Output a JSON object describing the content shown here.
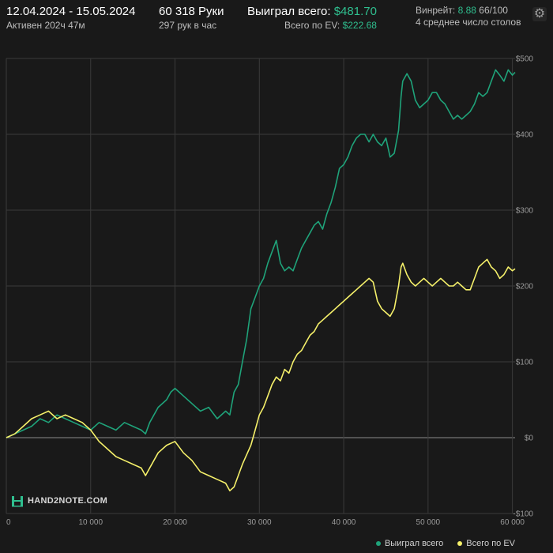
{
  "header": {
    "date_range": "12.04.2024 - 15.05.2024",
    "active_time": "Активен 202ч 47м",
    "hands": "60 318 Руки",
    "hands_per_hour": "297 рук в час",
    "won_total_label": "Выиграл всего:",
    "won_total_value": "$481.70",
    "ev_total_label": "Всего по EV:",
    "ev_total_value": "$222.68",
    "winrate_label": "Винрейт:",
    "winrate_value": "8.88",
    "winrate_suffix": "66/100",
    "tables": "4 среднее число столов"
  },
  "settings_icon": "gear-icon",
  "watermark": {
    "text": "HAND2NOTE.COM",
    "logo": "hand2note-logo"
  },
  "colors": {
    "background": "#191919",
    "grid": "#3a3a3a",
    "zero_line": "#8a8a8a",
    "won": "#1fa37a",
    "ev": "#f5f06a",
    "accent_green": "#2fbf8f"
  },
  "chart_data": {
    "type": "line",
    "title": "",
    "xlabel": "",
    "ylabel": "",
    "xlim": [
      0,
      60318
    ],
    "ylim": [
      -100,
      500
    ],
    "x_ticks": [
      0,
      10000,
      20000,
      30000,
      40000,
      50000,
      60000
    ],
    "x_tick_labels": [
      "0",
      "10 000",
      "20 000",
      "30 000",
      "40 000",
      "50 000",
      "60 000"
    ],
    "y_ticks": [
      -100,
      0,
      100,
      200,
      300,
      400,
      500
    ],
    "y_tick_labels": [
      "-$100",
      "$0",
      "$100",
      "$200",
      "$300",
      "$400",
      "$500"
    ],
    "grid": true,
    "legend_position": "bottom-right",
    "series": [
      {
        "name": "Выиграл всего",
        "color": "#1fa37a",
        "points": [
          [
            0,
            0
          ],
          [
            1000,
            5
          ],
          [
            2000,
            10
          ],
          [
            3000,
            15
          ],
          [
            4000,
            25
          ],
          [
            5000,
            20
          ],
          [
            6000,
            30
          ],
          [
            7000,
            25
          ],
          [
            8000,
            20
          ],
          [
            9000,
            15
          ],
          [
            10000,
            10
          ],
          [
            11000,
            20
          ],
          [
            12000,
            15
          ],
          [
            13000,
            10
          ],
          [
            14000,
            20
          ],
          [
            15000,
            15
          ],
          [
            16000,
            10
          ],
          [
            16500,
            5
          ],
          [
            17000,
            20
          ],
          [
            18000,
            40
          ],
          [
            19000,
            50
          ],
          [
            19500,
            60
          ],
          [
            20000,
            65
          ],
          [
            21000,
            55
          ],
          [
            22000,
            45
          ],
          [
            23000,
            35
          ],
          [
            24000,
            40
          ],
          [
            25000,
            25
          ],
          [
            26000,
            35
          ],
          [
            26500,
            30
          ],
          [
            27000,
            60
          ],
          [
            27500,
            70
          ],
          [
            28000,
            100
          ],
          [
            28500,
            130
          ],
          [
            29000,
            170
          ],
          [
            29500,
            185
          ],
          [
            30000,
            200
          ],
          [
            30500,
            210
          ],
          [
            31000,
            230
          ],
          [
            31500,
            245
          ],
          [
            32000,
            260
          ],
          [
            32500,
            230
          ],
          [
            33000,
            220
          ],
          [
            33500,
            225
          ],
          [
            34000,
            220
          ],
          [
            34500,
            235
          ],
          [
            35000,
            250
          ],
          [
            35500,
            260
          ],
          [
            36000,
            270
          ],
          [
            36500,
            280
          ],
          [
            37000,
            285
          ],
          [
            37500,
            275
          ],
          [
            38000,
            295
          ],
          [
            38500,
            310
          ],
          [
            39000,
            330
          ],
          [
            39500,
            355
          ],
          [
            40000,
            360
          ],
          [
            40500,
            370
          ],
          [
            41000,
            385
          ],
          [
            41500,
            395
          ],
          [
            42000,
            400
          ],
          [
            42500,
            400
          ],
          [
            43000,
            390
          ],
          [
            43500,
            400
          ],
          [
            44000,
            390
          ],
          [
            44500,
            385
          ],
          [
            45000,
            395
          ],
          [
            45500,
            370
          ],
          [
            46000,
            375
          ],
          [
            46500,
            405
          ],
          [
            46800,
            450
          ],
          [
            47000,
            470
          ],
          [
            47500,
            480
          ],
          [
            48000,
            470
          ],
          [
            48500,
            445
          ],
          [
            49000,
            435
          ],
          [
            49500,
            440
          ],
          [
            50000,
            445
          ],
          [
            50500,
            455
          ],
          [
            51000,
            455
          ],
          [
            51500,
            445
          ],
          [
            52000,
            440
          ],
          [
            52500,
            430
          ],
          [
            53000,
            420
          ],
          [
            53500,
            425
          ],
          [
            54000,
            420
          ],
          [
            54500,
            425
          ],
          [
            55000,
            430
          ],
          [
            55500,
            440
          ],
          [
            56000,
            455
          ],
          [
            56500,
            450
          ],
          [
            57000,
            455
          ],
          [
            57500,
            470
          ],
          [
            58000,
            485
          ],
          [
            58500,
            478
          ],
          [
            59000,
            470
          ],
          [
            59500,
            485
          ],
          [
            60000,
            478
          ],
          [
            60318,
            481.7
          ]
        ]
      },
      {
        "name": "Всего по EV",
        "color": "#f5f06a",
        "points": [
          [
            0,
            0
          ],
          [
            1000,
            5
          ],
          [
            2000,
            15
          ],
          [
            3000,
            25
          ],
          [
            4000,
            30
          ],
          [
            5000,
            35
          ],
          [
            6000,
            25
          ],
          [
            7000,
            30
          ],
          [
            8000,
            25
          ],
          [
            9000,
            20
          ],
          [
            10000,
            10
          ],
          [
            11000,
            -5
          ],
          [
            12000,
            -15
          ],
          [
            13000,
            -25
          ],
          [
            14000,
            -30
          ],
          [
            15000,
            -35
          ],
          [
            16000,
            -40
          ],
          [
            16500,
            -50
          ],
          [
            17000,
            -40
          ],
          [
            18000,
            -20
          ],
          [
            19000,
            -10
          ],
          [
            20000,
            -5
          ],
          [
            21000,
            -20
          ],
          [
            22000,
            -30
          ],
          [
            23000,
            -45
          ],
          [
            24000,
            -50
          ],
          [
            25000,
            -55
          ],
          [
            26000,
            -60
          ],
          [
            26500,
            -70
          ],
          [
            27000,
            -65
          ],
          [
            28000,
            -35
          ],
          [
            29000,
            -10
          ],
          [
            29500,
            10
          ],
          [
            30000,
            30
          ],
          [
            30500,
            40
          ],
          [
            31000,
            55
          ],
          [
            31500,
            70
          ],
          [
            32000,
            80
          ],
          [
            32500,
            75
          ],
          [
            33000,
            90
          ],
          [
            33500,
            85
          ],
          [
            34000,
            100
          ],
          [
            34500,
            110
          ],
          [
            35000,
            115
          ],
          [
            35500,
            125
          ],
          [
            36000,
            135
          ],
          [
            36500,
            140
          ],
          [
            37000,
            150
          ],
          [
            37500,
            155
          ],
          [
            38000,
            160
          ],
          [
            38500,
            165
          ],
          [
            39000,
            170
          ],
          [
            39500,
            175
          ],
          [
            40000,
            180
          ],
          [
            40500,
            185
          ],
          [
            41000,
            190
          ],
          [
            41500,
            195
          ],
          [
            42000,
            200
          ],
          [
            42500,
            205
          ],
          [
            43000,
            210
          ],
          [
            43500,
            205
          ],
          [
            44000,
            180
          ],
          [
            44500,
            170
          ],
          [
            45000,
            165
          ],
          [
            45500,
            160
          ],
          [
            46000,
            170
          ],
          [
            46500,
            200
          ],
          [
            46800,
            225
          ],
          [
            47000,
            230
          ],
          [
            47500,
            215
          ],
          [
            48000,
            205
          ],
          [
            48500,
            200
          ],
          [
            49000,
            205
          ],
          [
            49500,
            210
          ],
          [
            50000,
            205
          ],
          [
            50500,
            200
          ],
          [
            51000,
            205
          ],
          [
            51500,
            210
          ],
          [
            52000,
            205
          ],
          [
            52500,
            200
          ],
          [
            53000,
            200
          ],
          [
            53500,
            205
          ],
          [
            54000,
            200
          ],
          [
            54500,
            195
          ],
          [
            55000,
            195
          ],
          [
            55500,
            210
          ],
          [
            56000,
            225
          ],
          [
            56500,
            230
          ],
          [
            57000,
            235
          ],
          [
            57500,
            225
          ],
          [
            58000,
            220
          ],
          [
            58500,
            210
          ],
          [
            59000,
            215
          ],
          [
            59500,
            225
          ],
          [
            60000,
            220
          ],
          [
            60318,
            222.68
          ]
        ]
      }
    ]
  }
}
